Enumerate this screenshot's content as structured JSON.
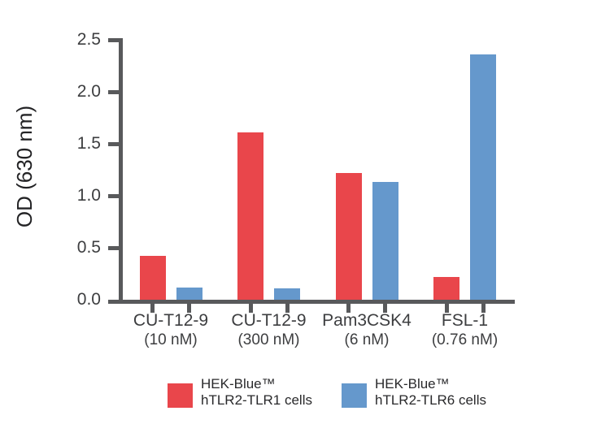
{
  "chart_data": {
    "type": "bar",
    "title": "",
    "xlabel": "",
    "ylabel": "OD (630 nm)",
    "ylim": [
      0,
      2.5
    ],
    "ytick_labels": [
      "0.0",
      "0.5",
      "1.0",
      "1.5",
      "2.0",
      "2.5"
    ],
    "grid": false,
    "legend_position": "bottom-center",
    "categories": [
      "CU-T12-9",
      "CU-T12-9",
      "Pam3CSK4",
      "FSL-1"
    ],
    "category_doses": [
      "(10 nM)",
      "(300 nM)",
      "(6 nM)",
      "(0.76 nM)"
    ],
    "series": [
      {
        "name": "HEK-Blue™ hTLR2-TLR1 cells",
        "color": "#E9464B",
        "values": [
          0.42,
          1.61,
          1.22,
          0.22
        ]
      },
      {
        "name": "HEK-Blue™ hTLR2-TLR6 cells",
        "color": "#6598CC",
        "values": [
          0.12,
          0.11,
          1.13,
          2.36
        ]
      }
    ],
    "legend": [
      {
        "lines": [
          "HEK-Blue™",
          "hTLR2-TLR1 cells"
        ],
        "color": "#E9464B"
      },
      {
        "lines": [
          "HEK-Blue™",
          "hTLR2-TLR6 cells"
        ],
        "color": "#6598CC"
      }
    ]
  },
  "style": {
    "axis_color": "#58595B",
    "tick_label_color": "#3D3E40",
    "legend_text_color": "#29292B",
    "background": "#FFFFFF"
  }
}
